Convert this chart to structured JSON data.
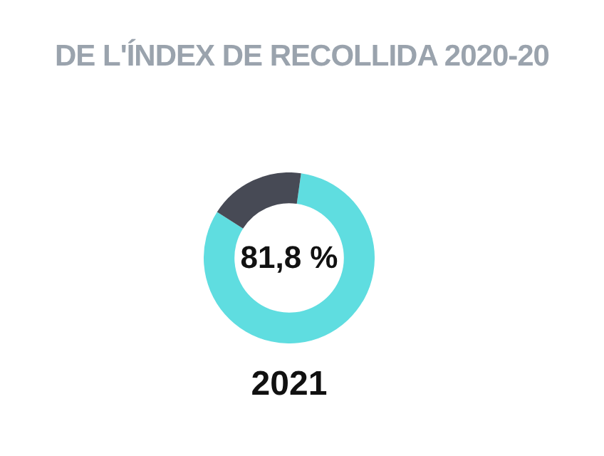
{
  "chart_data": {
    "type": "donut",
    "title": "DE L'ÍNDEX DE RECOLLIDA 2020-20",
    "xlabel": "2021",
    "categories": [
      null,
      null
    ],
    "values": [
      81.8,
      18.2
    ],
    "colors": [
      "#5fdde0",
      "#474a55"
    ],
    "value_labels": [
      "81,8 %",
      null
    ],
    "legend": false
  }
}
